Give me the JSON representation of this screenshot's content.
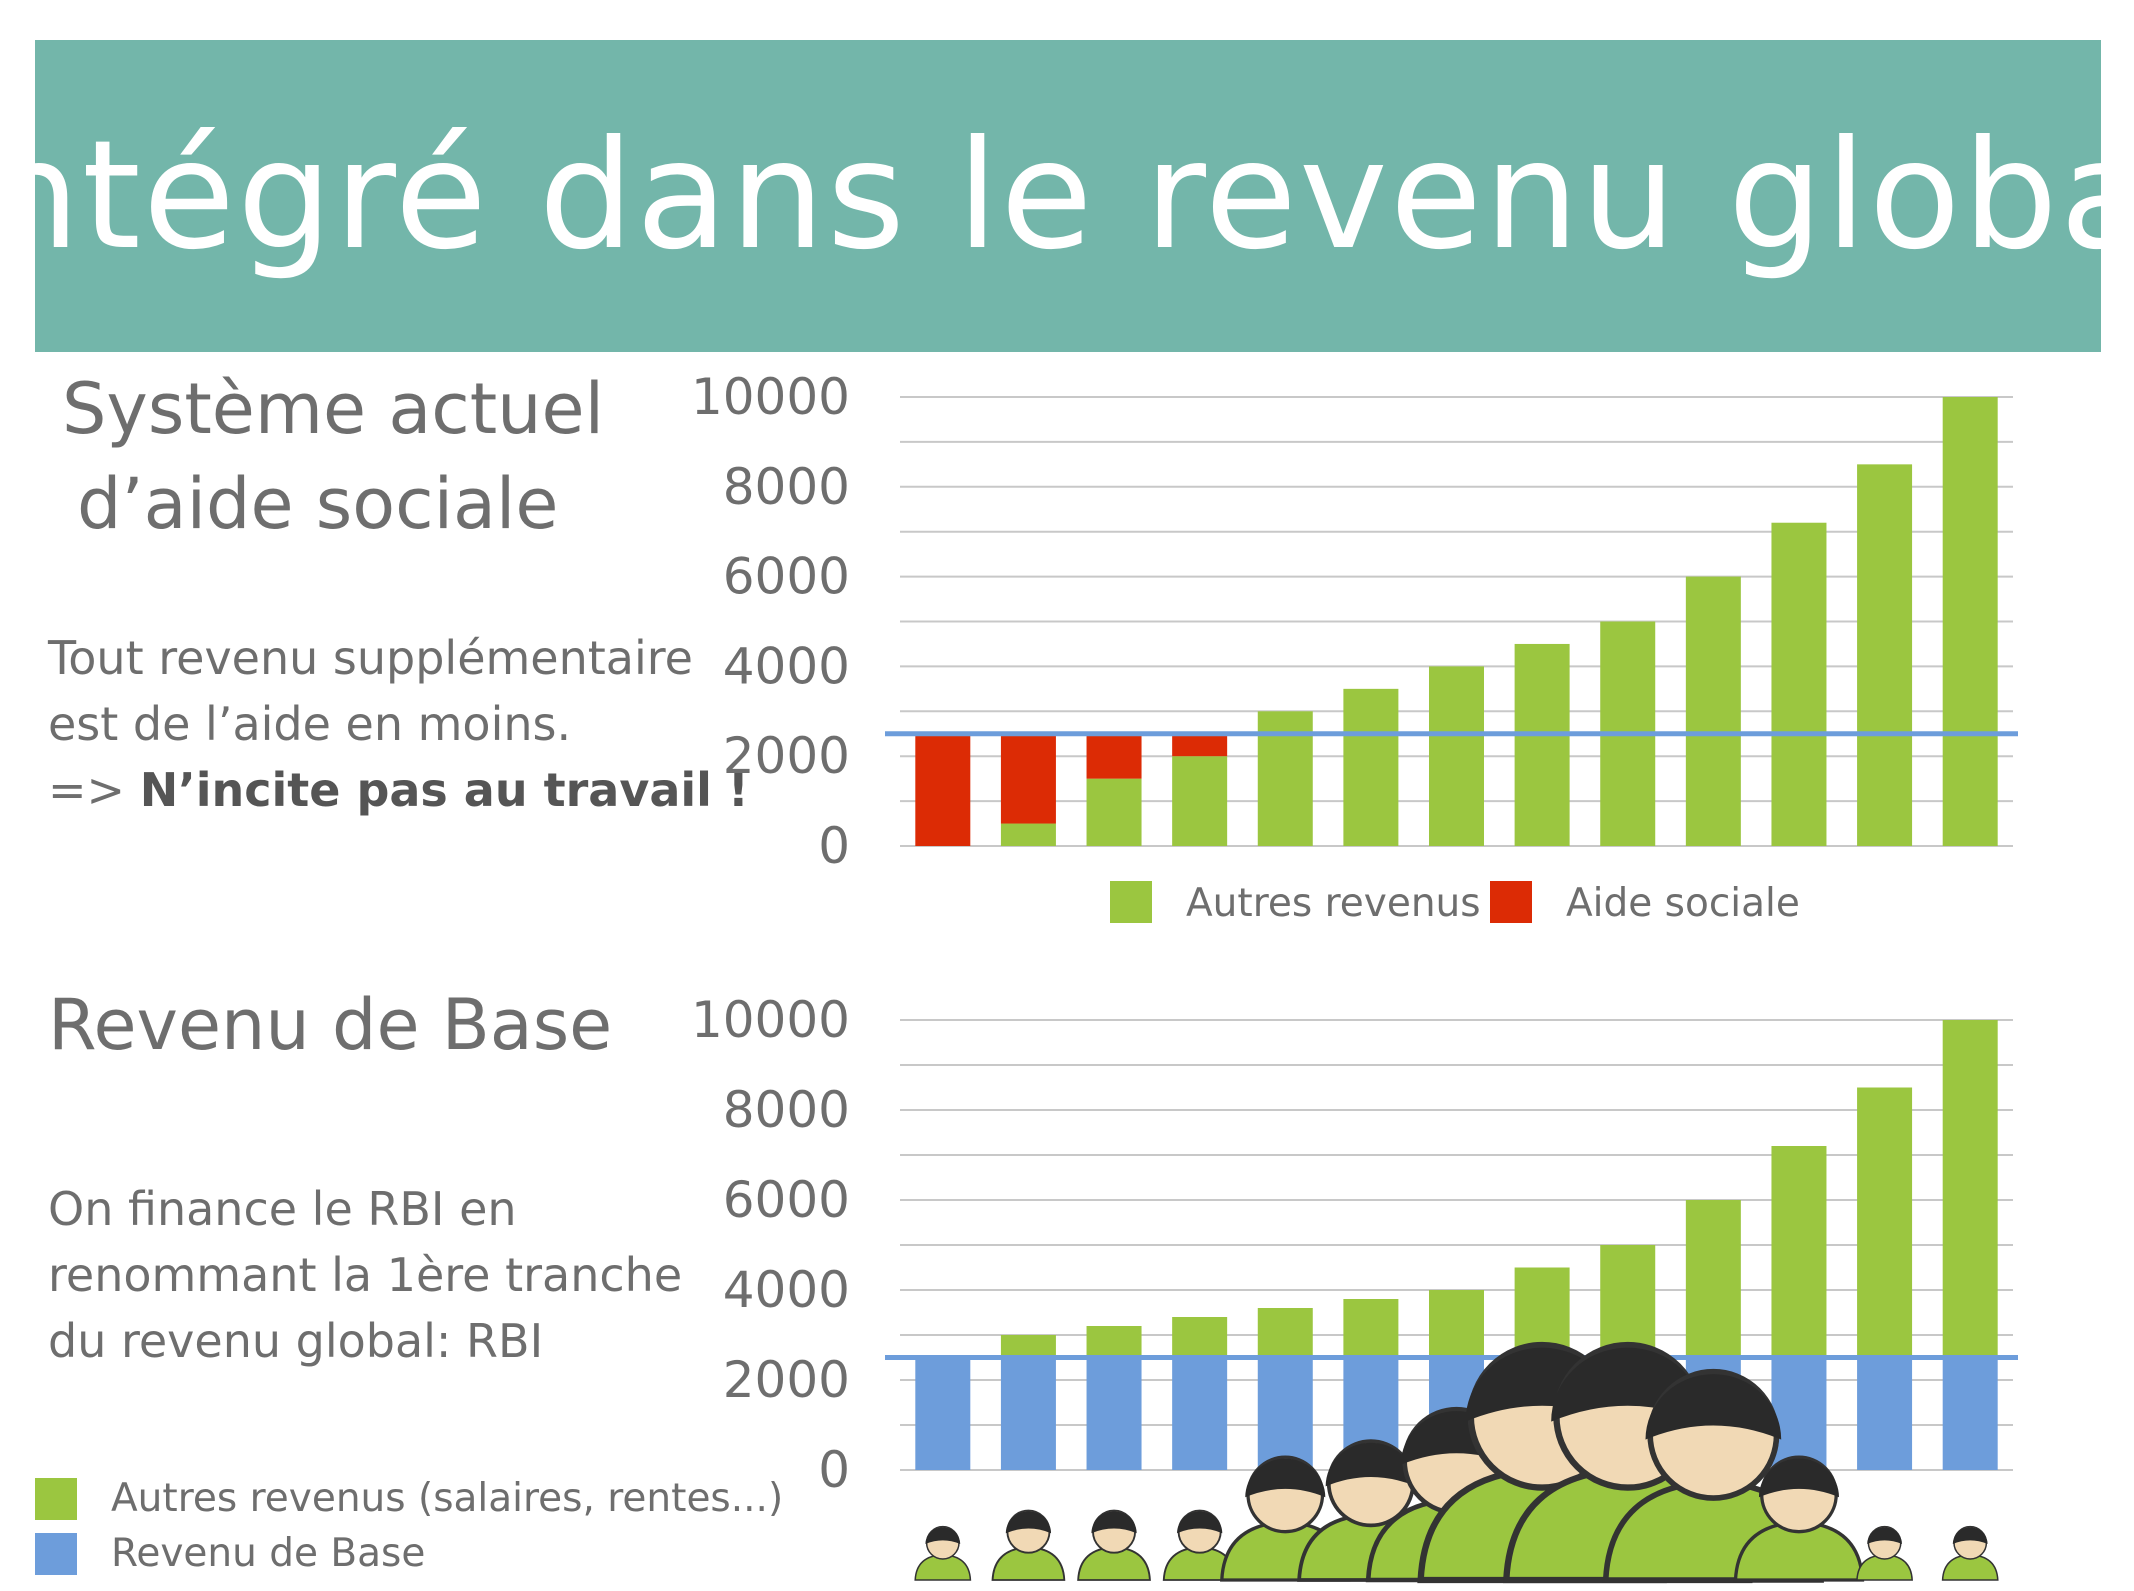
{
  "banner": {
    "title": "Intégré dans le revenu global"
  },
  "top": {
    "heading": [
      "Système actuel",
      "d’aide sociale"
    ],
    "text": [
      "Tout revenu supplémentaire",
      "est de l’aide en moins."
    ],
    "text_prefix": "=> ",
    "text_bold": "N’incite pas au travail !"
  },
  "bottom": {
    "heading": "Revenu de Base",
    "text": [
      "On finance le RBI en",
      "renommant la 1ère tranche",
      "du revenu global: RBI"
    ]
  },
  "legend_bottom": [
    {
      "label": "Autres revenus (salaires, rentes...)",
      "color": "#9bc640"
    },
    {
      "label": "Revenu de Base",
      "color": "#6d9ddb"
    }
  ],
  "population_icon": "person-icon",
  "population_sizes": [
    1,
    1.3,
    1.3,
    1.3,
    2.3,
    2.6,
    3.2,
    4.4,
    4.4,
    3.9,
    2.3,
    1,
    1
  ],
  "colors": {
    "green": "#9bc640",
    "red": "#dc2b05",
    "blue": "#6d9ddb",
    "threshold": "#6d9ddb",
    "grid": "#c8c8c8"
  },
  "chart_data": [
    {
      "type": "bar",
      "stacked": true,
      "categories": [
        "1",
        "2",
        "3",
        "4",
        "5",
        "6",
        "7",
        "8",
        "9",
        "10",
        "11",
        "12",
        "13"
      ],
      "series": [
        {
          "name": "Autres revenus",
          "color": "#9bc640",
          "values": [
            0,
            500,
            1500,
            2000,
            3000,
            3500,
            4000,
            4500,
            5000,
            6000,
            7200,
            8500,
            10000
          ]
        },
        {
          "name": "Aide sociale",
          "color": "#dc2b05",
          "values": [
            2500,
            2000,
            1000,
            500,
            0,
            0,
            0,
            0,
            0,
            0,
            0,
            0,
            0
          ]
        }
      ],
      "ylim": [
        0,
        10000
      ],
      "yticks": [
        0,
        2000,
        4000,
        6000,
        8000,
        10000
      ],
      "threshold": 2500,
      "grid": true,
      "legend": "bottom",
      "legend_items": [
        {
          "label": "Autres revenus",
          "color": "#9bc640"
        },
        {
          "label": "Aide sociale",
          "color": "#dc2b05"
        }
      ]
    },
    {
      "type": "bar",
      "stacked": true,
      "categories": [
        "1",
        "2",
        "3",
        "4",
        "5",
        "6",
        "7",
        "8",
        "9",
        "10",
        "11",
        "12",
        "13"
      ],
      "series": [
        {
          "color": "#6d9ddb",
          "values": [
            2500,
            2500,
            2500,
            2500,
            2500,
            2500,
            2500,
            2500,
            2500,
            2500,
            2500,
            2500,
            2500
          ]
        },
        {
          "color": "#9bc640",
          "values": [
            0,
            500,
            700,
            900,
            1100,
            1300,
            1500,
            2000,
            2500,
            3500,
            4700,
            6000,
            7500
          ]
        }
      ],
      "ylim": [
        0,
        10000
      ],
      "yticks": [
        0,
        2000,
        4000,
        6000,
        8000,
        10000
      ],
      "threshold": 2500,
      "grid": true
    }
  ]
}
